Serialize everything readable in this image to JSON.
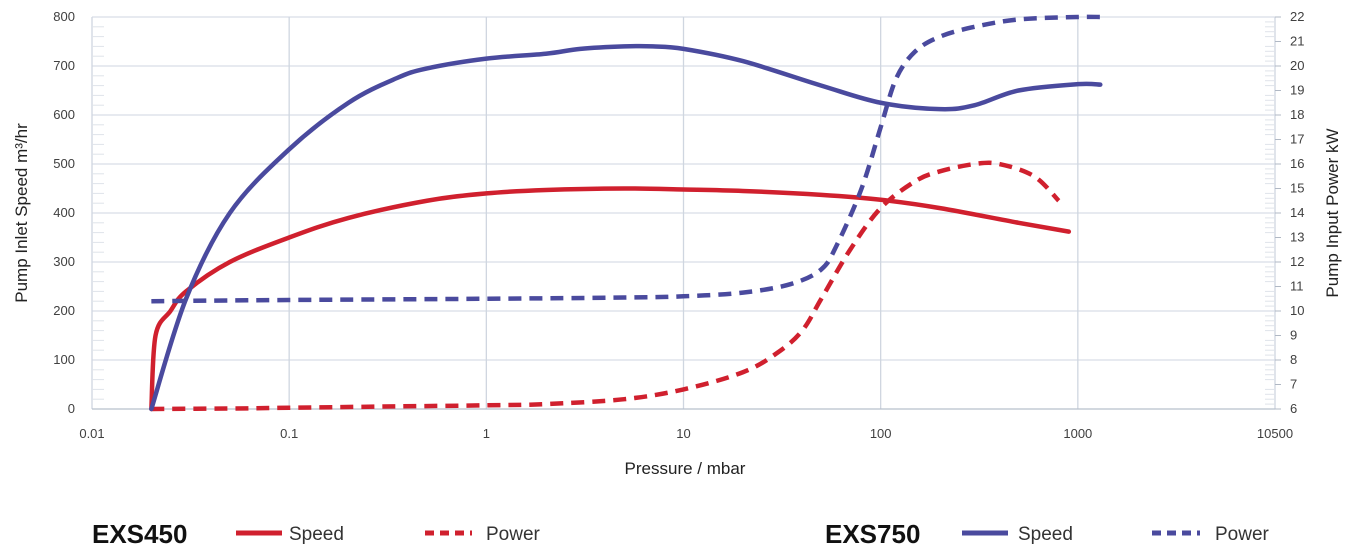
{
  "chart_data": {
    "type": "line",
    "xlabel": "Pressure / mbar",
    "ylabel_left": "Pump Inlet Speed m³/hr",
    "ylabel_right": "Pump Input Power kW",
    "x_scale": "log",
    "xlim": [
      0.01,
      10500
    ],
    "ylim_left": [
      0,
      800
    ],
    "ylim_right": [
      6,
      22
    ],
    "x_ticks": [
      0.01,
      0.1,
      1,
      10,
      100,
      1000,
      10500
    ],
    "x_tick_labels": [
      "0.01",
      "0.1",
      "1",
      "10",
      "100",
      "1000",
      "10500"
    ],
    "y_ticks_left": [
      0,
      100,
      200,
      300,
      400,
      500,
      600,
      700,
      800
    ],
    "y_ticks_right": [
      6,
      7,
      8,
      9,
      10,
      11,
      12,
      13,
      14,
      15,
      16,
      17,
      18,
      19,
      20,
      21,
      22
    ],
    "grid": true,
    "legend_placement": "bottom",
    "series": [
      {
        "name": "Speed",
        "model": "EXS450",
        "axis": "left",
        "style": "solid",
        "color": "#d0202e",
        "points": [
          [
            0.02,
            0
          ],
          [
            0.021,
            150
          ],
          [
            0.025,
            200
          ],
          [
            0.03,
            240
          ],
          [
            0.05,
            300
          ],
          [
            0.1,
            350
          ],
          [
            0.2,
            390
          ],
          [
            0.5,
            425
          ],
          [
            1,
            440
          ],
          [
            2,
            447
          ],
          [
            5,
            450
          ],
          [
            10,
            448
          ],
          [
            20,
            445
          ],
          [
            50,
            437
          ],
          [
            100,
            427
          ],
          [
            200,
            410
          ],
          [
            500,
            380
          ],
          [
            900,
            362
          ]
        ]
      },
      {
        "name": "Power",
        "model": "EXS450",
        "axis": "right",
        "style": "dashed",
        "color": "#d0202e",
        "points": [
          [
            0.02,
            6
          ],
          [
            0.05,
            6.02
          ],
          [
            0.1,
            6.05
          ],
          [
            0.3,
            6.1
          ],
          [
            1,
            6.15
          ],
          [
            2,
            6.2
          ],
          [
            5,
            6.4
          ],
          [
            10,
            6.8
          ],
          [
            20,
            7.5
          ],
          [
            30,
            8.3
          ],
          [
            40,
            9.2
          ],
          [
            50,
            10.5
          ],
          [
            70,
            12.5
          ],
          [
            100,
            14.2
          ],
          [
            150,
            15.3
          ],
          [
            200,
            15.7
          ],
          [
            300,
            16
          ],
          [
            400,
            16
          ],
          [
            600,
            15.5
          ],
          [
            800,
            14.5
          ]
        ]
      },
      {
        "name": "Speed",
        "model": "EXS750",
        "axis": "left",
        "style": "solid",
        "color": "#4a4a9e",
        "points": [
          [
            0.02,
            0
          ],
          [
            0.03,
            225
          ],
          [
            0.05,
            400
          ],
          [
            0.1,
            530
          ],
          [
            0.2,
            625
          ],
          [
            0.35,
            675
          ],
          [
            0.5,
            695
          ],
          [
            1,
            715
          ],
          [
            2,
            725
          ],
          [
            3,
            735
          ],
          [
            5,
            740
          ],
          [
            7,
            740
          ],
          [
            10,
            735
          ],
          [
            20,
            710
          ],
          [
            50,
            660
          ],
          [
            100,
            625
          ],
          [
            200,
            612
          ],
          [
            300,
            620
          ],
          [
            500,
            650
          ],
          [
            1000,
            663
          ],
          [
            1300,
            662
          ]
        ]
      },
      {
        "name": "Power",
        "model": "EXS750",
        "axis": "right",
        "style": "dashed",
        "color": "#4a4a9e",
        "points": [
          [
            0.02,
            10.4
          ],
          [
            0.1,
            10.45
          ],
          [
            1,
            10.5
          ],
          [
            5,
            10.55
          ],
          [
            10,
            10.6
          ],
          [
            20,
            10.75
          ],
          [
            35,
            11.1
          ],
          [
            50,
            11.7
          ],
          [
            60,
            12.7
          ],
          [
            80,
            15
          ],
          [
            100,
            17.5
          ],
          [
            120,
            19.5
          ],
          [
            150,
            20.6
          ],
          [
            200,
            21.2
          ],
          [
            300,
            21.6
          ],
          [
            500,
            21.9
          ],
          [
            1000,
            22
          ],
          [
            1300,
            22
          ]
        ]
      }
    ]
  },
  "legend": {
    "group1": {
      "model": "EXS450",
      "speed_label": "Speed",
      "power_label": "Power",
      "color": "#d0202e"
    },
    "group2": {
      "model": "EXS750",
      "speed_label": "Speed",
      "power_label": "Power",
      "color": "#4a4a9e"
    }
  }
}
